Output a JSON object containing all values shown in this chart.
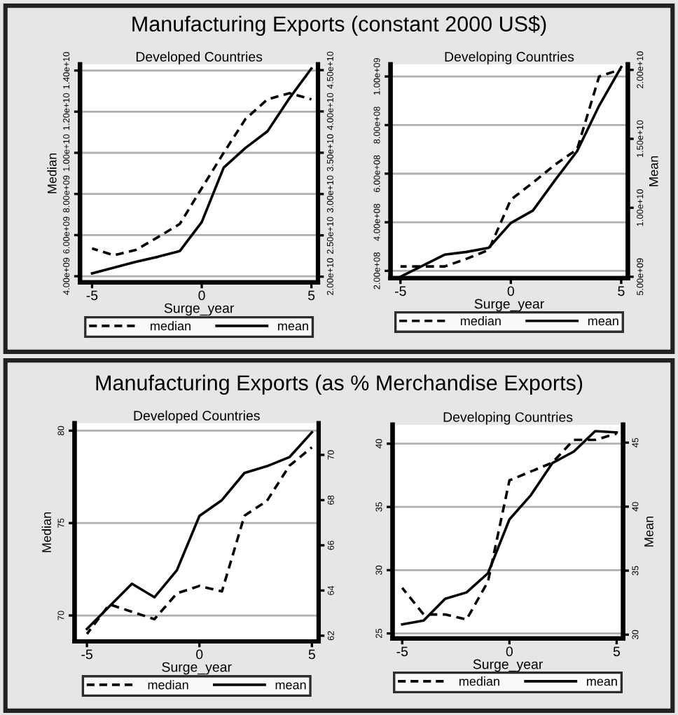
{
  "chart_data": [
    {
      "type": "line",
      "title": "Manufacturing Exports (constant 2000 US$)",
      "subtitle": "Developed Countries",
      "xlabel": "Surge_year",
      "ylabel": "Median",
      "x": [
        -5,
        -4,
        -3,
        -2,
        -1,
        0,
        1,
        2,
        3,
        4,
        5
      ],
      "series": [
        {
          "name": "median",
          "color": "#000000",
          "line_style": "dashed",
          "axis": "y",
          "values": [
            5350000000.0,
            5020000000.0,
            5280000000.0,
            5900000000.0,
            6540000000.0,
            8280000000.0,
            10000000000.0,
            11650000000.0,
            12600000000.0,
            12900000000.0,
            12600000000.0
          ]
        },
        {
          "name": "mean",
          "color": "#000000",
          "line_style": "solid",
          "axis": "y2",
          "values": [
            20400000000.0,
            21100000000.0,
            21800000000.0,
            22400000000.0,
            23100000000.0,
            26600000000.0,
            33200000000.0,
            35600000000.0,
            37600000000.0,
            41600000000.0,
            45200000000.0
          ]
        }
      ],
      "xlim": [
        -5.55,
        5.3
      ],
      "xticks": [
        -5,
        0,
        5
      ],
      "ylim": [
        3700000000.0,
        14300000000.0
      ],
      "yticks": [
        {
          "value": 4000000000,
          "label": "4.00e+09"
        },
        {
          "value": 6000000000,
          "label": "6.00e+09"
        },
        {
          "value": 8000000000,
          "label": "8.00e+09"
        },
        {
          "value": 10000000000,
          "label": "1.00e+10"
        },
        {
          "value": 12000000000,
          "label": "1.20e+10"
        },
        {
          "value": 14000000000,
          "label": "1.40e+10"
        }
      ],
      "y2lim": [
        19300000000.0,
        45700000000.0
      ],
      "y2ticks": [
        {
          "value": 20000000000,
          "label": "2.00e+10"
        },
        {
          "value": 25000000000,
          "label": "2.50e+10"
        },
        {
          "value": 30000000000,
          "label": "3.00e+10"
        },
        {
          "value": 35000000000,
          "label": "3.50e+10"
        },
        {
          "value": 40000000000,
          "label": "4.00e+10"
        },
        {
          "value": 45000000000,
          "label": "4.50e+10"
        }
      ],
      "grid": "y",
      "legend": "bottom"
    },
    {
      "type": "line",
      "subtitle": "Developing Countries",
      "xlabel": "Surge_year",
      "y2label": "Mean",
      "x": [
        -5,
        -4,
        -3,
        -2,
        -1,
        0,
        1,
        2,
        3,
        4,
        5
      ],
      "series": [
        {
          "name": "median",
          "color": "#000000",
          "line_style": "dashed",
          "axis": "y",
          "values": [
            218000000.0,
            218000000.0,
            218000000.0,
            250000000.0,
            286000000.0,
            493000000.0,
            563000000.0,
            637000000.0,
            700000000.0,
            1000000000.0,
            1030000000.0
          ]
        },
        {
          "name": "mean",
          "color": "#000000",
          "line_style": "solid",
          "axis": "y2",
          "values": [
            5000000000.0,
            5800000000.0,
            6600000000.0,
            6800000000.0,
            7100000000.0,
            8900000000.0,
            9800000000.0,
            12000000000.0,
            14100000000.0,
            17400000000.0,
            20200000000.0
          ]
        }
      ],
      "xlim": [
        -5.45,
        5.3
      ],
      "xticks": [
        -5,
        0,
        5
      ],
      "ylim": [
        170000000.0,
        1050000000.0
      ],
      "yticks": [
        {
          "value": 200000000,
          "label": "2.00e+08"
        },
        {
          "value": 400000000,
          "label": "4.00e+08"
        },
        {
          "value": 600000000,
          "label": "6.00e+08"
        },
        {
          "value": 800000000,
          "label": "8.00e+08"
        },
        {
          "value": 1000000000,
          "label": "1.00e+09"
        }
      ],
      "y2lim": [
        4900000000.0,
        20400000000.0
      ],
      "y2ticks": [
        {
          "value": 5000000000,
          "label": "5.00e+09"
        },
        {
          "value": 10000000000,
          "label": "1.00e+10"
        },
        {
          "value": 15000000000,
          "label": "1.50e+10"
        },
        {
          "value": 20000000000,
          "label": "2.00e+10"
        }
      ],
      "grid": "y",
      "legend": "bottom"
    },
    {
      "type": "line",
      "title": "Manufacturing Exports (as % Merchandise Exports)",
      "subtitle": "Developed Countries",
      "xlabel": "Surge_year",
      "ylabel": "Median",
      "x": [
        -5,
        -4,
        -3,
        -2,
        -1,
        0,
        1,
        2,
        3,
        4,
        5
      ],
      "series": [
        {
          "name": "median",
          "color": "#000000",
          "line_style": "dashed",
          "axis": "y",
          "values": [
            69.0,
            70.6,
            70.2,
            69.8,
            71.2,
            71.6,
            71.3,
            75.4,
            76.2,
            78.1,
            79.1
          ]
        },
        {
          "name": "mean",
          "color": "#000000",
          "line_style": "solid",
          "axis": "y2",
          "values": [
            62.3,
            63.3,
            64.3,
            63.7,
            64.9,
            67.3,
            68.0,
            69.2,
            69.5,
            69.9,
            71.0
          ]
        }
      ],
      "xlim": [
        -5.55,
        5.3
      ],
      "xticks": [
        -5,
        0,
        5
      ],
      "ylim": [
        68.6,
        80.4
      ],
      "yticks": [
        70,
        75,
        80
      ],
      "y2lim": [
        61.75,
        71.4
      ],
      "y2ticks": [
        62,
        64,
        66,
        68,
        70
      ],
      "grid": "y",
      "legend": "bottom"
    },
    {
      "type": "line",
      "subtitle": "Developing Countries",
      "xlabel": "Surge_year",
      "y2label": "Mean",
      "x": [
        -5,
        -4,
        -3,
        -2,
        -1,
        0,
        1,
        2,
        3,
        4,
        5
      ],
      "series": [
        {
          "name": "median",
          "color": "#000000",
          "line_style": "dashed",
          "axis": "y",
          "values": [
            28.6,
            26.5,
            26.5,
            26.1,
            29.1,
            37.1,
            37.8,
            38.5,
            40.3,
            40.3,
            40.8
          ]
        },
        {
          "name": "mean",
          "color": "#000000",
          "line_style": "solid",
          "axis": "y2",
          "values": [
            30.8,
            31.1,
            32.8,
            33.3,
            34.8,
            39.0,
            40.9,
            43.4,
            44.3,
            45.9,
            45.8
          ]
        }
      ],
      "xlim": [
        -5.45,
        5.3
      ],
      "xticks": [
        -5,
        0,
        5
      ],
      "ylim": [
        24.6,
        41.5
      ],
      "yticks": [
        25,
        30,
        35,
        40
      ],
      "y2lim": [
        29.7,
        46.4
      ],
      "y2ticks": [
        30,
        35,
        40,
        45
      ],
      "grid": "y",
      "legend": "bottom"
    }
  ]
}
